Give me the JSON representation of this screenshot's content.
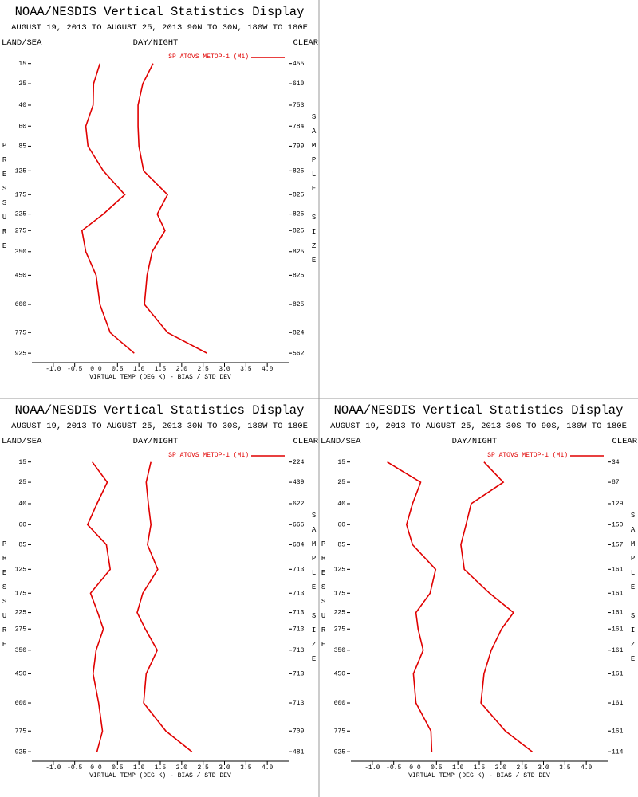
{
  "chart_data": [
    {
      "type": "line",
      "title": "NOAA/NESDIS Vertical Statistics Display",
      "subtitle": "AUGUST 19, 2013 TO AUGUST 25, 2013  90N TO 30N, 180W TO 180E",
      "left_label": "LAND/SEA",
      "center_label": "DAY/NIGHT",
      "right_label": "CLEAR",
      "y_label": "PRESSURE",
      "y2_label": "SAMPLE SIZE",
      "x_label": "VIRTUAL TEMP (DEG K) - BIAS / STD DEV",
      "y": [
        15,
        25,
        40,
        60,
        85,
        125,
        175,
        225,
        275,
        350,
        450,
        600,
        775,
        925
      ],
      "sample_size": [
        455,
        610,
        753,
        784,
        799,
        825,
        825,
        825,
        825,
        825,
        825,
        825,
        824,
        562
      ],
      "series": [
        {
          "name": "SP ATOVS METOP-1 (M1)",
          "color": "#e00000",
          "values": [
            0.09,
            -0.06,
            -0.07,
            -0.24,
            -0.19,
            0.17,
            0.67,
            0.17,
            -0.33,
            -0.24,
            0.0,
            0.09,
            0.33,
            0.89
          ]
        },
        {
          "color": "#e00000",
          "values": [
            1.33,
            1.09,
            0.98,
            0.98,
            1.0,
            1.11,
            1.67,
            1.43,
            1.61,
            1.31,
            1.19,
            1.13,
            1.67,
            2.59
          ]
        }
      ],
      "xlim": [
        -1.5,
        4.5
      ],
      "xticks": [
        {
          "value": -1,
          "label": "-1.0"
        },
        -0.5,
        {
          "value": 0,
          "label": "0.0"
        },
        0.5,
        {
          "value": 1,
          "label": "1.0"
        },
        1.5,
        {
          "value": 2,
          "label": "2.0"
        },
        2.5,
        {
          "value": 3,
          "label": "3.0"
        },
        3.5,
        {
          "value": 4,
          "label": "4.0"
        }
      ],
      "ylim": [
        10,
        1000
      ],
      "yticks": [
        15,
        25,
        40,
        60,
        85,
        125,
        175,
        225,
        275,
        350,
        450,
        600,
        775,
        925
      ]
    },
    {
      "type": "line",
      "title": "NOAA/NESDIS Vertical Statistics Display",
      "subtitle": "AUGUST 19, 2013 TO AUGUST 25, 2013  30N TO 30S, 180W TO 180E",
      "left_label": "LAND/SEA",
      "center_label": "DAY/NIGHT",
      "right_label": "CLEAR",
      "y_label": "PRESSURE",
      "y2_label": "SAMPLE SIZE",
      "x_label": "VIRTUAL TEMP (DEG K) - BIAS / STD DEV",
      "y": [
        15,
        25,
        40,
        60,
        85,
        125,
        175,
        225,
        275,
        350,
        450,
        600,
        775,
        925
      ],
      "sample_size": [
        224,
        439,
        622,
        666,
        684,
        713,
        713,
        713,
        713,
        713,
        713,
        713,
        709,
        481
      ],
      "series": [
        {
          "name": "SP ATOVS METOP-1 (M1)",
          "color": "#e00000",
          "values": [
            -0.09,
            0.26,
            0.02,
            -0.2,
            0.24,
            0.33,
            -0.13,
            0.04,
            0.17,
            0.0,
            -0.07,
            0.06,
            0.15,
            0.02
          ]
        },
        {
          "color": "#e00000",
          "values": [
            1.28,
            1.17,
            1.22,
            1.28,
            1.2,
            1.44,
            1.09,
            0.96,
            1.15,
            1.43,
            1.17,
            1.11,
            1.63,
            2.24
          ]
        }
      ],
      "xlim": [
        -1.5,
        4.5
      ],
      "xticks": [
        {
          "value": -1,
          "label": "-1.0"
        },
        -0.5,
        {
          "value": 0,
          "label": "0.0"
        },
        0.5,
        {
          "value": 1,
          "label": "1.0"
        },
        1.5,
        {
          "value": 2,
          "label": "2.0"
        },
        2.5,
        {
          "value": 3,
          "label": "3.0"
        },
        3.5,
        {
          "value": 4,
          "label": "4.0"
        }
      ],
      "ylim": [
        10,
        1000
      ],
      "yticks": [
        15,
        25,
        40,
        60,
        85,
        125,
        175,
        225,
        275,
        350,
        450,
        600,
        775,
        925
      ]
    },
    {
      "type": "line",
      "title": "NOAA/NESDIS Vertical Statistics Display",
      "subtitle": "AUGUST 19, 2013 TO AUGUST 25, 2013  30S TO 90S, 180W TO 180E",
      "left_label": "LAND/SEA",
      "center_label": "DAY/NIGHT",
      "right_label": "CLEAR",
      "y_label": "PRESSURE",
      "y2_label": "SAMPLE SIZE",
      "x_label": "VIRTUAL TEMP (DEG K) - BIAS / STD DEV",
      "y": [
        15,
        25,
        40,
        60,
        85,
        125,
        175,
        225,
        275,
        350,
        450,
        600,
        775,
        925
      ],
      "sample_size": [
        34,
        87,
        129,
        150,
        157,
        161,
        161,
        161,
        161,
        161,
        161,
        161,
        161,
        114
      ],
      "series": [
        {
          "name": "SP ATOVS METOP-1 (M1)",
          "color": "#e00000",
          "values": [
            -0.65,
            0.13,
            -0.06,
            -0.2,
            -0.06,
            0.48,
            0.35,
            0.02,
            0.07,
            0.19,
            -0.04,
            0.02,
            0.37,
            0.39
          ]
        },
        {
          "color": "#e00000",
          "values": [
            1.61,
            2.06,
            1.31,
            1.19,
            1.07,
            1.15,
            1.74,
            2.3,
            2.02,
            1.78,
            1.61,
            1.54,
            2.11,
            2.74
          ]
        }
      ],
      "xlim": [
        -1.5,
        4.5
      ],
      "xticks": [
        {
          "value": -1,
          "label": "-1.0"
        },
        -0.5,
        {
          "value": 0,
          "label": "0.0"
        },
        0.5,
        {
          "value": 1,
          "label": "1.0"
        },
        1.5,
        {
          "value": 2,
          "label": "2.0"
        },
        2.5,
        {
          "value": 3,
          "label": "3.0"
        },
        3.5,
        {
          "value": 4,
          "label": "4.0"
        }
      ],
      "ylim": [
        10,
        1000
      ],
      "yticks": [
        15,
        25,
        40,
        60,
        85,
        125,
        175,
        225,
        275,
        350,
        450,
        600,
        775,
        925
      ]
    }
  ]
}
